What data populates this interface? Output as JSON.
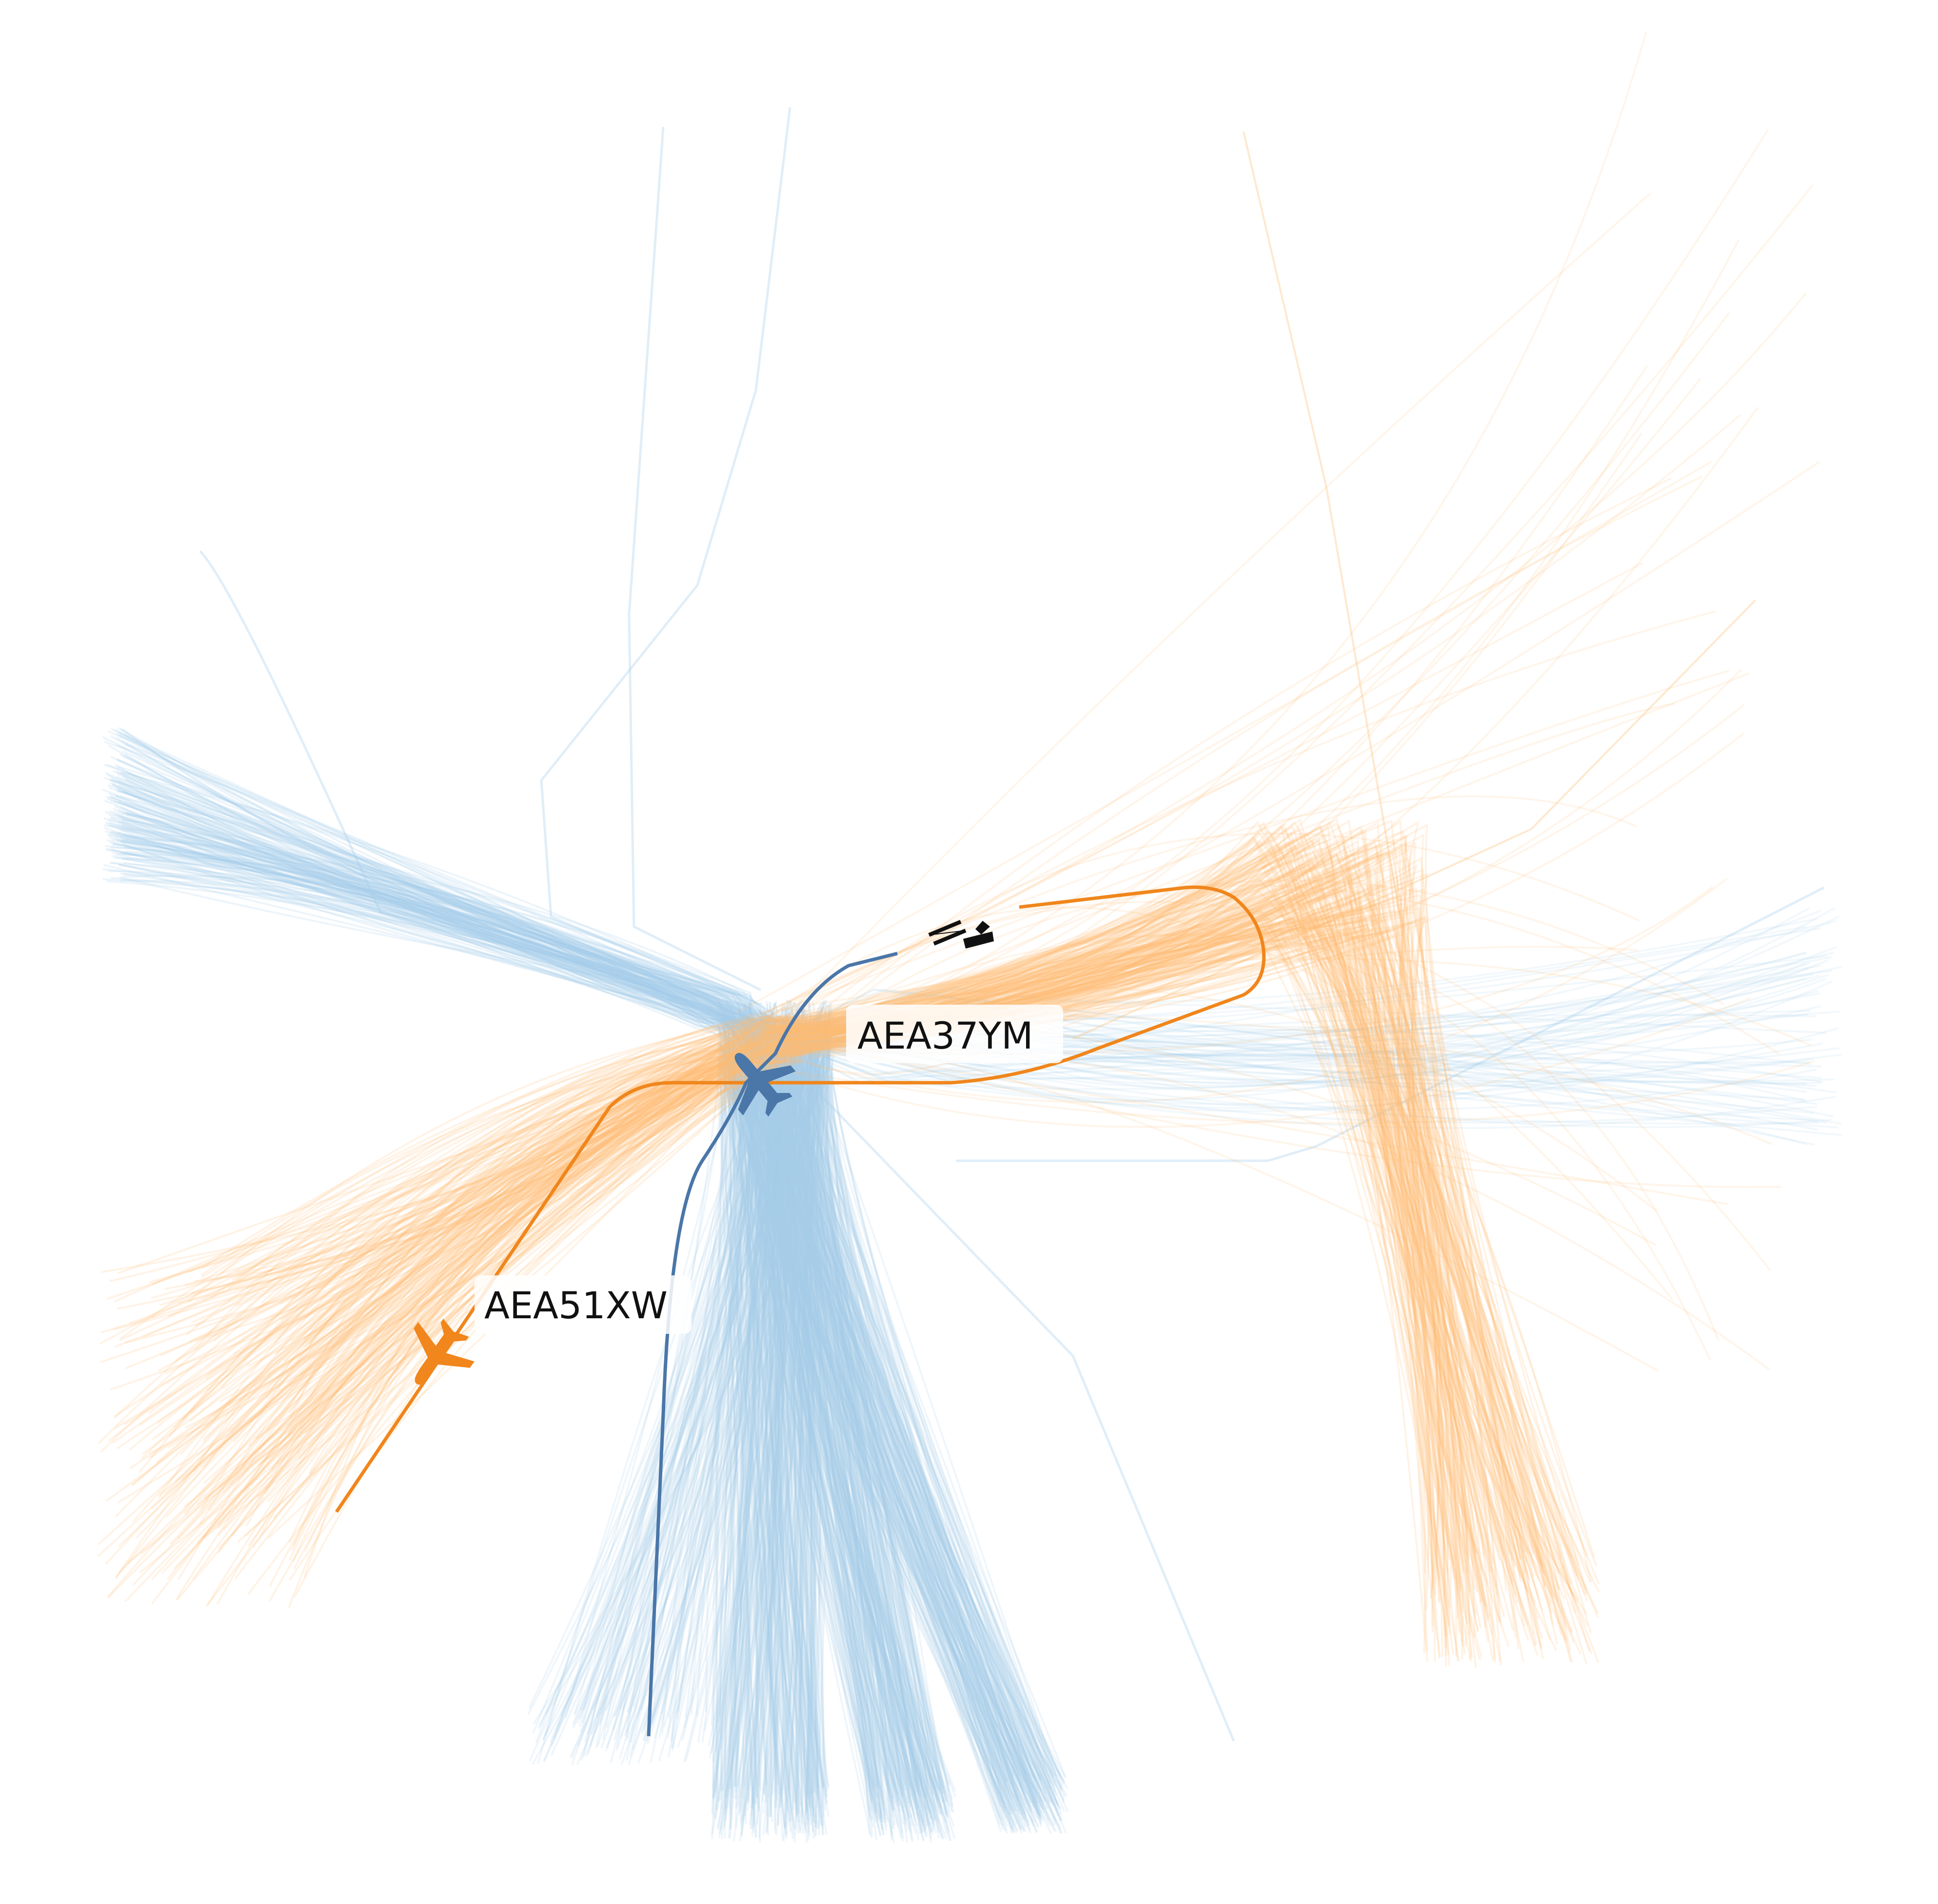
{
  "colors": {
    "arrivals_bundle": "#a6cdea",
    "departures_bundle": "#fdbf75",
    "highlight_arrival": "#4a76a8",
    "highlight_departure": "#f0861c",
    "airport": "#111111"
  },
  "icons": {
    "aircraft": "airplane-icon",
    "airport": "airport-runway-icon"
  },
  "flights": [
    {
      "callsign": "AEA37YM",
      "role": "arrival"
    },
    {
      "callsign": "AEA51XW",
      "role": "departure"
    }
  ]
}
